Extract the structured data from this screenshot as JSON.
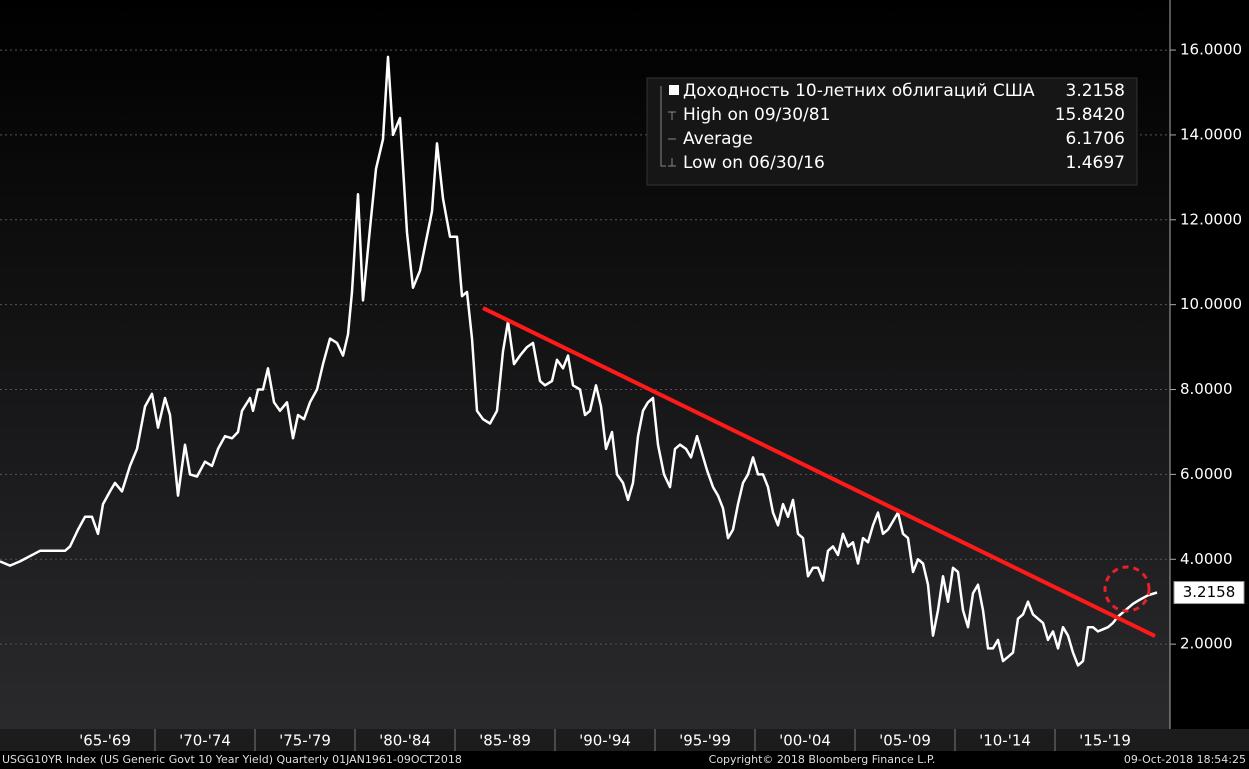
{
  "chart_data": {
    "type": "line",
    "series": [
      {
        "name": "Доходность 10-летних облигаций США",
        "color": "#ffffff",
        "values": [
          3.95,
          3.85,
          3.95,
          4.2,
          4.2,
          4.2,
          4.3,
          4.7,
          5.0,
          5.0,
          4.6,
          5.3,
          5.6,
          5.8,
          5.6,
          6.2,
          6.6,
          7.6,
          7.9,
          7.1,
          7.8,
          7.4,
          5.5,
          6.7,
          6.0,
          5.95,
          6.3,
          6.2,
          6.6,
          6.9,
          6.85,
          7.0,
          7.5,
          7.8,
          7.5,
          8.0,
          8.0,
          8.5,
          7.7,
          7.5,
          7.7,
          6.85,
          7.4,
          7.3,
          7.7,
          8.0,
          8.6,
          9.2,
          9.1,
          8.8,
          9.3,
          10.3,
          12.6,
          10.1,
          11.8,
          13.2,
          13.9,
          15.84,
          14.0,
          14.4,
          11.7,
          10.4,
          10.8,
          11.5,
          12.2,
          13.8,
          12.5,
          11.6,
          11.6,
          10.2,
          10.3,
          9.2,
          7.5,
          7.3,
          7.2,
          7.5,
          8.9,
          9.6,
          8.6,
          8.8,
          9.0,
          9.1,
          8.2,
          8.1,
          8.2,
          8.7,
          8.5,
          8.8,
          8.1,
          8.0,
          7.4,
          7.5,
          8.1,
          7.6,
          6.6,
          7.0,
          6.0,
          5.8,
          5.4,
          5.8,
          6.9,
          7.5,
          7.7,
          7.8,
          6.7,
          6.0,
          5.7,
          6.6,
          6.7,
          6.6,
          6.4,
          6.9,
          6.5,
          6.1,
          5.7,
          5.5,
          5.2,
          4.5,
          4.7,
          5.3,
          5.8,
          6.0,
          6.4,
          6.0,
          6.0,
          5.7,
          5.1,
          4.8,
          5.3,
          5.0,
          5.4,
          4.6,
          4.5,
          3.6,
          3.8,
          3.8,
          3.5,
          4.2,
          4.3,
          4.1,
          4.6,
          4.3,
          4.4,
          3.9,
          4.5,
          4.4,
          4.8,
          5.1,
          4.6,
          4.7,
          4.9,
          5.1,
          4.6,
          4.5,
          3.7,
          4.0,
          3.9,
          3.4,
          2.2,
          2.8,
          3.6,
          3.0,
          3.8,
          3.7,
          2.8,
          2.4,
          3.2,
          3.4,
          2.8,
          1.9,
          1.9,
          2.1,
          1.6,
          1.7,
          1.8,
          2.6,
          2.7,
          3.0,
          2.7,
          2.6,
          2.5,
          2.1,
          2.3,
          1.9,
          2.4,
          2.2,
          1.8,
          1.5,
          1.6,
          2.4,
          2.4,
          2.3,
          2.35,
          2.4,
          2.5,
          2.65,
          2.75,
          2.85,
          2.95,
          3.05,
          3.15,
          3.2158
        ]
      }
    ],
    "x": [
      1962.25,
      1962.75,
      1963.25,
      1964.25,
      1964.75,
      1965.5,
      1965.75,
      1966.15,
      1966.5,
      1966.85,
      1967.15,
      1967.4,
      1967.75,
      1968.0,
      1968.35,
      1968.75,
      1969.1,
      1969.5,
      1969.85,
      1970.15,
      1970.5,
      1970.75,
      1971.15,
      1971.5,
      1971.75,
      1972.1,
      1972.5,
      1972.85,
      1973.15,
      1973.5,
      1973.85,
      1974.15,
      1974.35,
      1974.75,
      1974.9,
      1975.15,
      1975.4,
      1975.65,
      1975.95,
      1976.25,
      1976.6,
      1976.9,
      1977.15,
      1977.45,
      1977.75,
      1978.1,
      1978.4,
      1978.75,
      1979.1,
      1979.4,
      1979.65,
      1979.85,
      1980.15,
      1980.4,
      1980.75,
      1981.05,
      1981.4,
      1981.65,
      1981.9,
      1982.25,
      1982.6,
      1982.9,
      1983.25,
      1983.55,
      1983.85,
      1984.1,
      1984.4,
      1984.75,
      1985.1,
      1985.35,
      1985.6,
      1985.85,
      1986.1,
      1986.4,
      1986.75,
      1987.1,
      1987.4,
      1987.65,
      1987.95,
      1988.25,
      1988.6,
      1988.9,
      1989.25,
      1989.5,
      1989.85,
      1990.1,
      1990.4,
      1990.65,
      1990.9,
      1991.25,
      1991.5,
      1991.75,
      1992.05,
      1992.3,
      1992.55,
      1992.85,
      1993.1,
      1993.4,
      1993.65,
      1993.9,
      1994.15,
      1994.4,
      1994.65,
      1994.9,
      1995.15,
      1995.45,
      1995.75,
      1996.0,
      1996.25,
      1996.55,
      1996.8,
      1997.1,
      1997.35,
      1997.6,
      1997.9,
      1998.15,
      1998.4,
      1998.65,
      1998.9,
      1999.15,
      1999.4,
      1999.65,
      1999.9,
      2000.15,
      2000.4,
      2000.65,
      2000.9,
      2001.15,
      2001.4,
      2001.65,
      2001.9,
      2002.15,
      2002.4,
      2002.65,
      2002.9,
      2003.15,
      2003.4,
      2003.65,
      2003.9,
      2004.15,
      2004.4,
      2004.65,
      2004.9,
      2005.15,
      2005.4,
      2005.65,
      2005.9,
      2006.15,
      2006.4,
      2006.65,
      2006.9,
      2007.15,
      2007.4,
      2007.65,
      2007.9,
      2008.15,
      2008.4,
      2008.65,
      2008.9,
      2009.15,
      2009.4,
      2009.65,
      2009.9,
      2010.15,
      2010.4,
      2010.65,
      2010.9,
      2011.15,
      2011.4,
      2011.65,
      2011.9,
      2012.15,
      2012.4,
      2012.65,
      2012.9,
      2013.15,
      2013.4,
      2013.65,
      2013.9,
      2014.15,
      2014.4,
      2014.65,
      2014.9,
      2015.15,
      2015.4,
      2015.65,
      2015.9,
      2016.15,
      2016.4,
      2016.65,
      2016.9,
      2017.15,
      2017.4,
      2017.65,
      2017.9,
      2018.15,
      2018.4,
      2018.65,
      2018.9,
      2019.25,
      2019.65,
      2020.1
    ],
    "xlim": [
      1962.25,
      2020.75
    ],
    "xticks": [
      {
        "value": 1967.5,
        "label": "'65-'69"
      },
      {
        "value": 1972.5,
        "label": "'70-'74"
      },
      {
        "value": 1977.5,
        "label": "'75-'79"
      },
      {
        "value": 1982.5,
        "label": "'80-'84"
      },
      {
        "value": 1987.5,
        "label": "'85-'89"
      },
      {
        "value": 1992.5,
        "label": "'90-'94"
      },
      {
        "value": 1997.5,
        "label": "'95-'99"
      },
      {
        "value": 2002.5,
        "label": "'00-'04"
      },
      {
        "value": 2007.5,
        "label": "'05-'09"
      },
      {
        "value": 2012.5,
        "label": "'10-'14"
      },
      {
        "value": 2017.5,
        "label": "'15-'19"
      }
    ],
    "ylim": [
      0,
      17.18
    ],
    "yticks": [
      {
        "value": 2,
        "label": "2.0000"
      },
      {
        "value": 4,
        "label": "4.0000"
      },
      {
        "value": 6,
        "label": "6.0000"
      },
      {
        "value": 8,
        "label": "8.0000"
      },
      {
        "value": 10,
        "label": "10.0000"
      },
      {
        "value": 12,
        "label": "12.0000"
      },
      {
        "value": 14,
        "label": "14.0000"
      },
      {
        "value": 16,
        "label": "16.0000"
      }
    ],
    "grid": true,
    "trendline": {
      "color": "#ff1a1a",
      "x": [
        1986.4,
        2020.0
      ],
      "values": [
        9.92,
        2.19
      ]
    },
    "legend_stats": [
      {
        "label": "High on 09/30/81",
        "value": "15.8420"
      },
      {
        "label": "Average",
        "value": "6.1706"
      },
      {
        "label": "Low on 06/30/16",
        "value": "1.4697"
      }
    ],
    "legend_last": "3.2158",
    "footer": {
      "left": "USGG10YR Index (US Generic Govt 10 Year Yield)  Quarterly 01JAN1961-09OCT2018",
      "center": "Copyright© 2018 Bloomberg Finance L.P.",
      "right": "09-Oct-2018 18:54:25"
    }
  }
}
